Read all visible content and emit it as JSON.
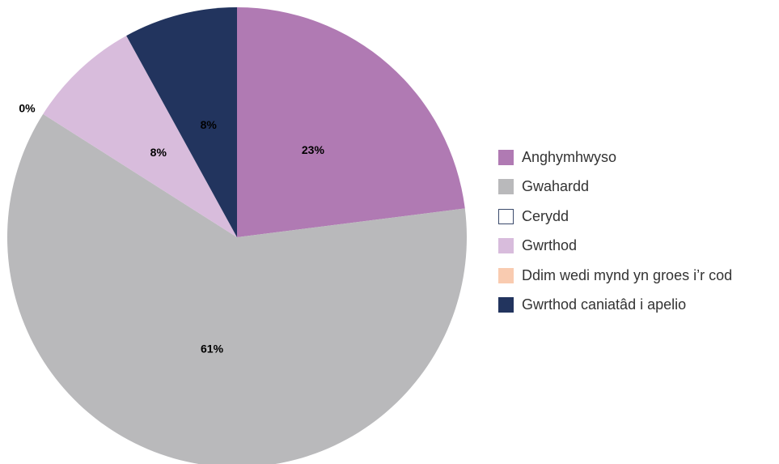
{
  "chart_data": {
    "type": "pie",
    "title": "",
    "legend_position": "right",
    "slices": [
      {
        "label": "Anghymhwyso",
        "value": 23,
        "display": "23%",
        "color": "#b07ab3",
        "outline": ""
      },
      {
        "label": "Gwahardd",
        "value": 61,
        "display": "61%",
        "color": "#b9b9bb",
        "outline": ""
      },
      {
        "label": "Cerydd",
        "value": 0,
        "display": "",
        "color": "#ffffff",
        "outline": "#3a4a6b"
      },
      {
        "label": "Gwrthod",
        "value": 8,
        "display": "8%",
        "color": "#d8bcdc",
        "outline": ""
      },
      {
        "label": "Ddim wedi mynd yn groes i’r cod",
        "value": 0,
        "display": "0%",
        "color": "#f9cbb0",
        "outline": ""
      },
      {
        "label": "Gwrthod caniatâd i apelio",
        "value": 8,
        "display": "8%",
        "color": "#22345e",
        "outline": ""
      }
    ]
  }
}
